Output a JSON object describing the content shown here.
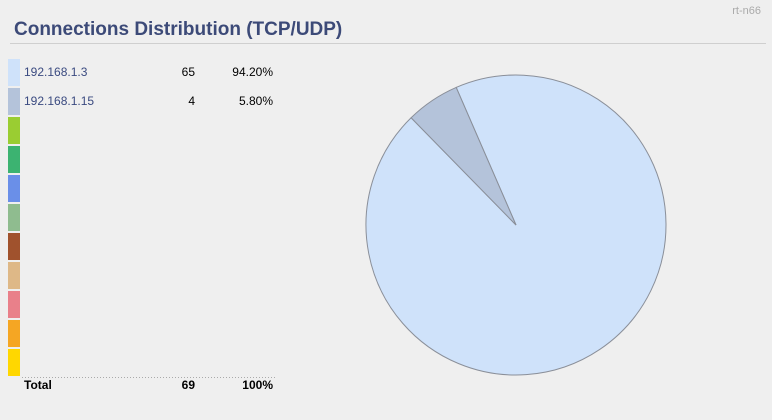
{
  "router": "rt-n66",
  "chart_data": {
    "type": "pie",
    "title": "Connections Distribution (TCP/UDP)",
    "categories": [
      "192.168.1.3",
      "192.168.1.15"
    ],
    "values": [
      65,
      4
    ],
    "shares": {
      "values": [
        94.2,
        5.8
      ],
      "value_labels": [
        "94.20%",
        "5.80%"
      ]
    },
    "colors": [
      "#cfe2fa",
      "#b4c3da",
      "#9acd32",
      "#3cb371",
      "#6a8fe8",
      "#8fbc8f",
      "#a0522d",
      "#deb887",
      "#e9808a",
      "#f5a623",
      "#ffd700"
    ],
    "total_label": "Total",
    "total": 69,
    "total_share": {
      "value": 100,
      "label": "100%"
    }
  }
}
